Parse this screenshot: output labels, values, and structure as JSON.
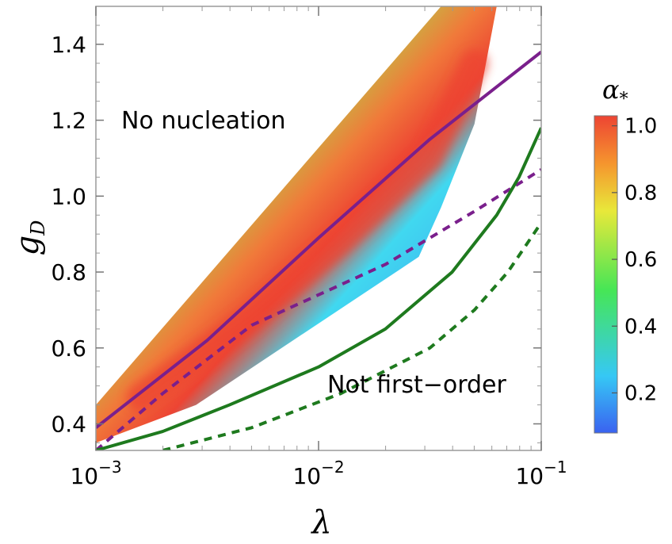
{
  "chart_data": {
    "type": "line",
    "title": "",
    "xlabel": "λ",
    "ylabel_main": "g",
    "ylabel_sub": "D",
    "xscale": "log",
    "xlim": [
      -3,
      -1
    ],
    "ylim": [
      0.33,
      1.5
    ],
    "xticks": [
      {
        "exp": -3,
        "base": "10",
        "sup": "−3"
      },
      {
        "exp": -2,
        "base": "10",
        "sup": "−2"
      },
      {
        "exp": -1,
        "base": "10",
        "sup": "−1"
      }
    ],
    "yticks": [
      "0.4",
      "0.6",
      "0.8",
      "1.0",
      "1.2",
      "1.4"
    ],
    "annotations": {
      "no_nucleation": "No nucleation",
      "not_first_order": "Not first−order"
    },
    "colorbar": {
      "title_main": "α",
      "title_sub": "*",
      "range": [
        0.08,
        1.03
      ],
      "ticks": [
        "0.2",
        "0.4",
        "0.6",
        "0.8",
        "1.0"
      ],
      "colors": [
        "#3a62f0",
        "#36c8f5",
        "#46e656",
        "#e8e83a",
        "#f5952e",
        "#ed4433"
      ]
    },
    "series": [
      {
        "name": "purple solid",
        "color": "#7a1f8c",
        "style": "solid",
        "points": [
          [
            -3,
            0.39
          ],
          [
            -2.5,
            0.62
          ],
          [
            -2,
            0.89
          ],
          [
            -1.5,
            1.15
          ],
          [
            -1,
            1.38
          ]
        ]
      },
      {
        "name": "purple dashed",
        "color": "#7a1f8c",
        "style": "dashed",
        "points": [
          [
            -3,
            0.33
          ],
          [
            -2.7,
            0.48
          ],
          [
            -2.3,
            0.66
          ],
          [
            -1.7,
            0.82
          ],
          [
            -1.3,
            0.96
          ],
          [
            -1,
            1.07
          ]
        ]
      },
      {
        "name": "green solid",
        "color": "#1e7a1e",
        "style": "solid",
        "points": [
          [
            -3,
            0.33
          ],
          [
            -2.7,
            0.38
          ],
          [
            -2.4,
            0.45
          ],
          [
            -2,
            0.55
          ],
          [
            -1.7,
            0.65
          ],
          [
            -1.4,
            0.8
          ],
          [
            -1.2,
            0.95
          ],
          [
            -1.1,
            1.05
          ],
          [
            -1,
            1.18
          ]
        ]
      },
      {
        "name": "green dashed",
        "color": "#1e7a1e",
        "style": "dashed",
        "points": [
          [
            -2.7,
            0.33
          ],
          [
            -2.3,
            0.39
          ],
          [
            -1.9,
            0.48
          ],
          [
            -1.5,
            0.6
          ],
          [
            -1.3,
            0.7
          ],
          [
            -1.15,
            0.8
          ],
          [
            -1,
            0.93
          ]
        ]
      }
    ],
    "region": {
      "name": "alpha_star field",
      "upper_boundary": [
        [
          -3,
          0.45
        ],
        [
          -1.45,
          1.5
        ],
        [
          -1.2,
          1.5
        ]
      ],
      "lower_boundary": [
        [
          -3,
          0.35
        ],
        [
          -2.55,
          0.45
        ],
        [
          -1.55,
          0.84
        ],
        [
          -1.45,
          0.97
        ],
        [
          -1.3,
          1.19
        ],
        [
          -1.2,
          1.5
        ]
      ],
      "peak_ridge": [
        [
          -2.8,
          0.47
        ],
        [
          -2.3,
          0.68
        ],
        [
          -1.9,
          0.88
        ],
        [
          -1.5,
          1.1
        ],
        [
          -1.3,
          1.35
        ]
      ]
    }
  }
}
